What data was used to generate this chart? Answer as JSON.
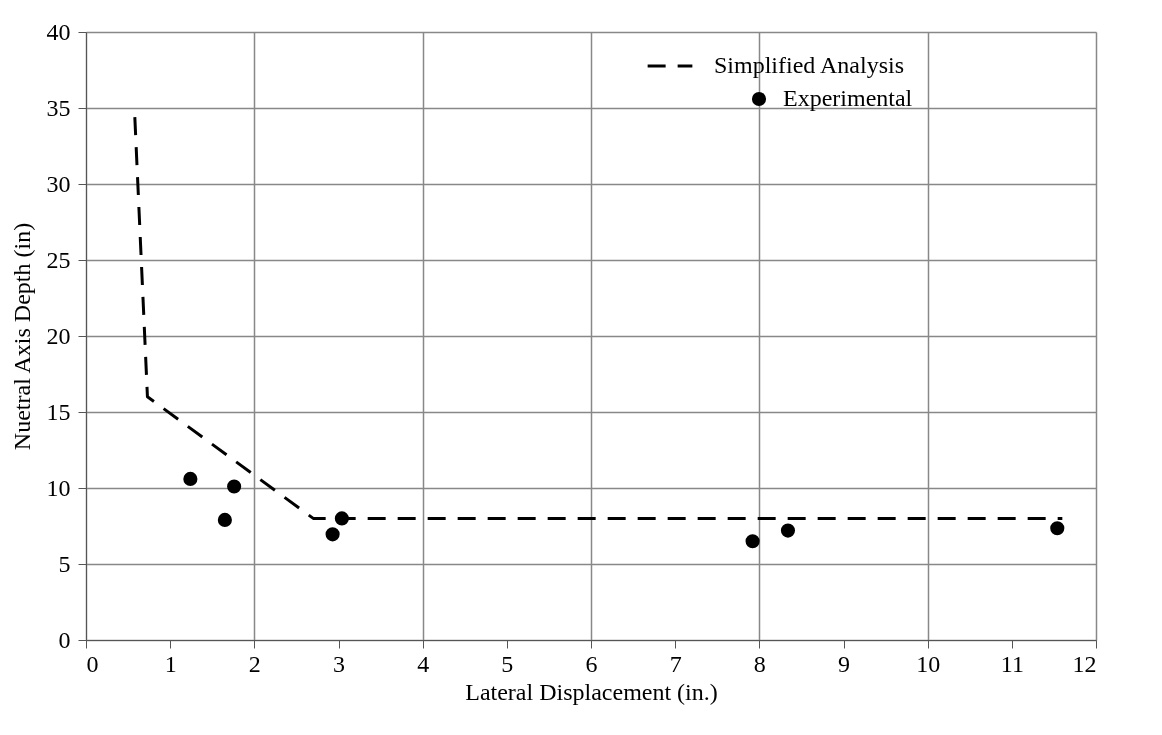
{
  "chart_data": {
    "type": "scatter",
    "xlabel": "Lateral Displacement (in.)",
    "ylabel": "Nuetral Axis Depth (in)",
    "xlim": [
      0,
      12
    ],
    "xticks": [
      0,
      1,
      2,
      3,
      4,
      5,
      6,
      7,
      8,
      9,
      10,
      11,
      12
    ],
    "ylim": [
      0,
      40
    ],
    "yticks": [
      0,
      5,
      10,
      15,
      20,
      25,
      30,
      35,
      40
    ],
    "grid": true,
    "legend": "top right",
    "series": [
      {
        "name": "Simplified Analysis",
        "type": "line",
        "color": "#000000",
        "line_style": "dashed",
        "marker": "none",
        "x": [
          0.58,
          0.73,
          2.7,
          11.6
        ],
        "values": [
          34.4,
          16.0,
          8.0,
          8.0
        ]
      },
      {
        "name": "Experimental",
        "color": "#000000",
        "marker": "circle",
        "x": [
          1.24,
          1.65,
          1.76,
          2.93,
          3.04,
          7.92,
          8.34,
          11.54
        ],
        "values": [
          10.6,
          7.9,
          10.1,
          6.95,
          8.0,
          6.5,
          7.2,
          7.35
        ]
      }
    ]
  }
}
